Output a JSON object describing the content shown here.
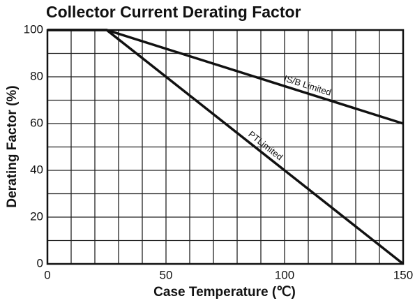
{
  "chart_data": {
    "type": "line",
    "title": "Collector Current Derating Factor",
    "xlabel": "Case Temperature (℃)",
    "ylabel": "Derating Factor (%)",
    "series": [
      {
        "name": "IS/B Limited",
        "color": "#111111",
        "x": [
          0,
          25,
          150
        ],
        "values": [
          100,
          100,
          60
        ]
      },
      {
        "name": "PTLimited",
        "color": "#111111",
        "x": [
          0,
          25,
          150
        ],
        "values": [
          100,
          100,
          0
        ]
      }
    ],
    "xlim": [
      0,
      150
    ],
    "ylim": [
      0,
      100
    ],
    "xticks": [
      0,
      50,
      100,
      150
    ],
    "yticks": [
      0,
      20,
      40,
      60,
      80,
      100
    ],
    "xgrid": [
      0,
      10,
      20,
      30,
      40,
      50,
      60,
      70,
      80,
      90,
      100,
      110,
      120,
      130,
      140,
      150
    ],
    "ygrid": [
      0,
      10,
      20,
      30,
      40,
      50,
      60,
      70,
      80,
      90,
      100
    ],
    "grid": true
  }
}
